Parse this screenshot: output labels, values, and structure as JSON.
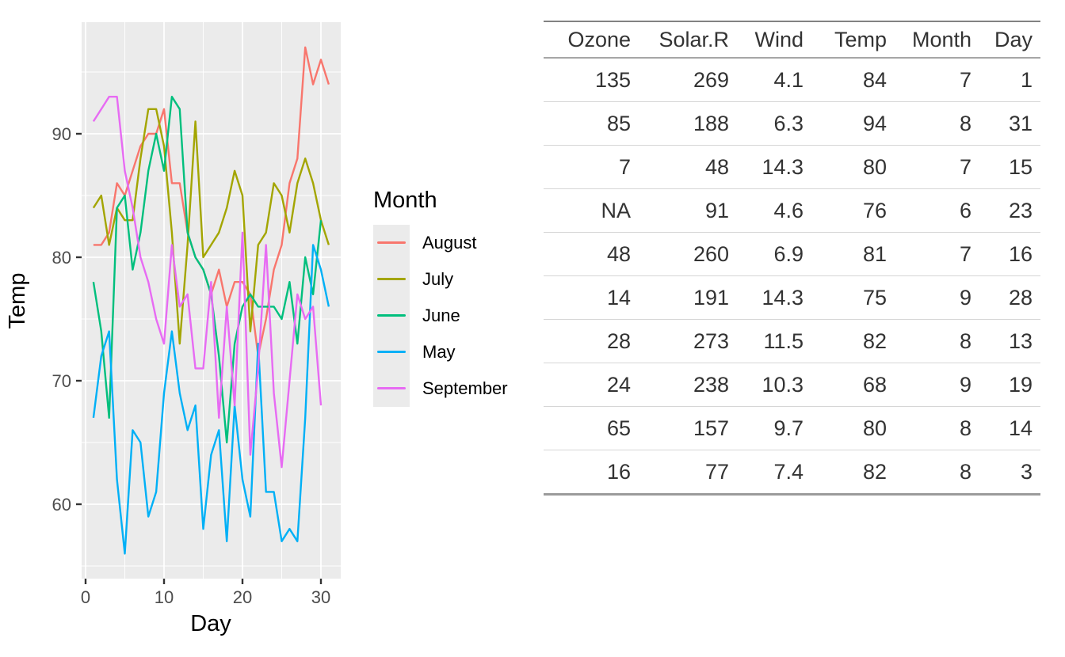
{
  "chart_data": {
    "type": "line",
    "title": "",
    "xlabel": "Day",
    "ylabel": "Temp",
    "legend_title": "Month",
    "legend_position": "right",
    "grid": true,
    "panel_bg": "#EBEBEB",
    "grid_color": "#FFFFFF",
    "tick_label_color": "#4D4D4D",
    "xlim": [
      -0.5,
      32.5
    ],
    "ylim": [
      53.95,
      99.05
    ],
    "x_ticks": [
      0,
      10,
      20,
      30
    ],
    "y_ticks": [
      60,
      70,
      80,
      90
    ],
    "x_minor": [
      5,
      15,
      25
    ],
    "y_minor": [
      55,
      65,
      75,
      85,
      95
    ],
    "series": [
      {
        "name": "August",
        "color": "#F8766D",
        "x": [
          1,
          2,
          3,
          4,
          5,
          6,
          7,
          8,
          9,
          10,
          11,
          12,
          13,
          14,
          15,
          16,
          17,
          18,
          19,
          20,
          21,
          22,
          23,
          24,
          25,
          26,
          27,
          28,
          29,
          30,
          31
        ],
        "y": [
          81,
          81,
          82,
          86,
          85,
          87,
          89,
          90,
          90,
          92,
          86,
          86,
          82,
          80,
          79,
          77,
          79,
          76,
          78,
          78,
          77,
          72,
          75,
          79,
          81,
          86,
          88,
          97,
          94,
          96,
          94
        ]
      },
      {
        "name": "July",
        "color": "#A3A500",
        "x": [
          1,
          2,
          3,
          4,
          5,
          6,
          7,
          8,
          9,
          10,
          11,
          12,
          13,
          14,
          15,
          16,
          17,
          18,
          19,
          20,
          21,
          22,
          23,
          24,
          25,
          26,
          27,
          28,
          29,
          30,
          31
        ],
        "y": [
          84,
          85,
          81,
          84,
          83,
          83,
          88,
          92,
          92,
          89,
          82,
          73,
          81,
          91,
          80,
          81,
          82,
          84,
          87,
          85,
          74,
          81,
          82,
          86,
          85,
          82,
          86,
          88,
          86,
          83,
          81
        ]
      },
      {
        "name": "June",
        "color": "#00BF7D",
        "x": [
          1,
          2,
          3,
          4,
          5,
          6,
          7,
          8,
          9,
          10,
          11,
          12,
          13,
          14,
          15,
          16,
          17,
          18,
          19,
          20,
          21,
          22,
          23,
          24,
          25,
          26,
          27,
          28,
          29,
          30
        ],
        "y": [
          78,
          74,
          67,
          84,
          85,
          79,
          82,
          87,
          90,
          87,
          93,
          92,
          82,
          80,
          79,
          77,
          72,
          65,
          73,
          76,
          77,
          76,
          76,
          76,
          75,
          78,
          73,
          80,
          77,
          83
        ]
      },
      {
        "name": "May",
        "color": "#00B0F6",
        "x": [
          1,
          2,
          3,
          4,
          5,
          6,
          7,
          8,
          9,
          10,
          11,
          12,
          13,
          14,
          15,
          16,
          17,
          18,
          19,
          20,
          21,
          22,
          23,
          24,
          25,
          26,
          27,
          28,
          29,
          30,
          31
        ],
        "y": [
          67,
          72,
          74,
          62,
          56,
          66,
          65,
          59,
          61,
          69,
          74,
          69,
          66,
          68,
          58,
          64,
          66,
          57,
          68,
          62,
          59,
          73,
          61,
          61,
          57,
          58,
          57,
          67,
          81,
          79,
          76
        ]
      },
      {
        "name": "September",
        "color": "#E76BF3",
        "x": [
          1,
          2,
          3,
          4,
          5,
          6,
          7,
          8,
          9,
          10,
          11,
          12,
          13,
          14,
          15,
          16,
          17,
          18,
          19,
          20,
          21,
          22,
          23,
          24,
          25,
          26,
          27,
          28,
          29,
          30
        ],
        "y": [
          91,
          92,
          93,
          93,
          87,
          84,
          80,
          78,
          75,
          73,
          81,
          76,
          77,
          71,
          71,
          78,
          67,
          76,
          68,
          82,
          64,
          71,
          81,
          69,
          63,
          70,
          77,
          75,
          76,
          68
        ]
      }
    ]
  },
  "table": {
    "columns": [
      "Ozone",
      "Solar.R",
      "Wind",
      "Temp",
      "Month",
      "Day"
    ],
    "rows": [
      [
        "135",
        "269",
        "4.1",
        "84",
        "7",
        "1"
      ],
      [
        "85",
        "188",
        "6.3",
        "94",
        "8",
        "31"
      ],
      [
        "7",
        "48",
        "14.3",
        "80",
        "7",
        "15"
      ],
      [
        "NA",
        "91",
        "4.6",
        "76",
        "6",
        "23"
      ],
      [
        "48",
        "260",
        "6.9",
        "81",
        "7",
        "16"
      ],
      [
        "14",
        "191",
        "14.3",
        "75",
        "9",
        "28"
      ],
      [
        "28",
        "273",
        "11.5",
        "82",
        "8",
        "13"
      ],
      [
        "24",
        "238",
        "10.3",
        "68",
        "9",
        "19"
      ],
      [
        "65",
        "157",
        "9.7",
        "80",
        "8",
        "14"
      ],
      [
        "16",
        "77",
        "7.4",
        "82",
        "8",
        "3"
      ]
    ]
  }
}
